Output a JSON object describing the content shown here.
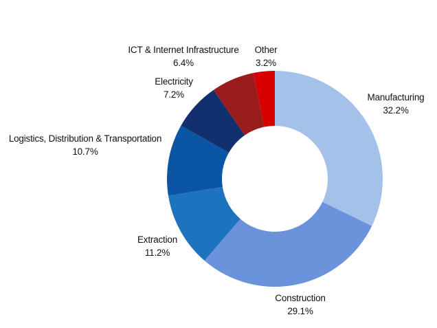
{
  "chart_data": {
    "type": "pie",
    "subtype": "donut",
    "title": "",
    "unit": "%",
    "direction": "clockwise",
    "start_angle_deg": 0,
    "inner_radius_ratio": 0.49,
    "legend_position": "none",
    "label_style": "outside, two lines: category name above percentage",
    "background": "#ffffff",
    "text_color": "#111111",
    "segments": [
      {
        "label": "Manufacturing",
        "value": 32.2,
        "pct": "32.2%",
        "color": "#a3c1e9"
      },
      {
        "label": "Construction",
        "value": 29.1,
        "pct": "29.1%",
        "color": "#6b93db"
      },
      {
        "label": "Extraction",
        "value": 11.2,
        "pct": "11.2%",
        "color": "#1e73be"
      },
      {
        "label": "Logistics, Distribution & Transportation",
        "value": 10.7,
        "pct": "10.7%",
        "color": "#0b56a4"
      },
      {
        "label": "Electricity",
        "value": 7.2,
        "pct": "7.2%",
        "color": "#12306e"
      },
      {
        "label": "ICT & Internet Infrastructure",
        "value": 6.4,
        "pct": "6.4%",
        "color": "#9a1c1c"
      },
      {
        "label": "Other",
        "value": 3.2,
        "pct": "3.2%",
        "color": "#d60000"
      }
    ]
  }
}
